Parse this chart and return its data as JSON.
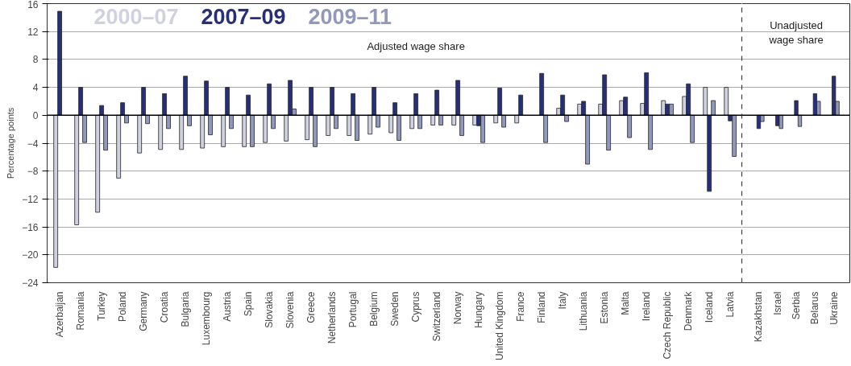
{
  "chart_data": [
    {
      "type": "bar",
      "ylabel": "Percentage points",
      "categories": [
        "Azerbaijan",
        "Romania",
        "Turkey",
        "Poland",
        "Germany",
        "Croatia",
        "Bulgaria",
        "Luxembourg",
        "Austria",
        "Spain",
        "Slovakia",
        "Slovenia",
        "Greece",
        "Netherlands",
        "Portugal",
        "Belgium",
        "Sweden",
        "Cyprus",
        "Switzerland",
        "Norway",
        "Hungary",
        "United Kingdom",
        "France",
        "Finland",
        "Italy",
        "Lithuania",
        "Estonia",
        "Malta",
        "Ireland",
        "Czech Republic",
        "Denmark",
        "Iceland",
        "Latvia"
      ],
      "series": [
        {
          "name": "2000–07",
          "color": "#cfd1e0",
          "values": [
            -21.8,
            -15.7,
            -13.9,
            -9.0,
            -5.4,
            -4.9,
            -4.9,
            -4.7,
            -4.5,
            -4.5,
            -3.9,
            -3.7,
            -3.5,
            -2.9,
            -2.9,
            -2.7,
            -2.5,
            -1.9,
            -1.4,
            -1.4,
            -1.4,
            -1.1,
            -1.1,
            null,
            1.0,
            1.6,
            1.6,
            2.1,
            1.7,
            2.1,
            2.7,
            4.0,
            4.0
          ]
        },
        {
          "name": "2007–09",
          "color": "#262f78",
          "values": [
            14.9,
            4.0,
            1.4,
            1.8,
            4.0,
            3.1,
            5.6,
            4.9,
            4.0,
            2.9,
            4.5,
            5.0,
            4.0,
            4.0,
            3.1,
            4.0,
            1.8,
            3.1,
            3.6,
            5.0,
            -1.5,
            3.9,
            2.9,
            6.0,
            2.9,
            2.0,
            5.8,
            2.6,
            6.1,
            1.6,
            4.5,
            -10.9,
            -0.8
          ]
        },
        {
          "name": "2009–11",
          "color": "#9298bb",
          "values": [
            null,
            -3.9,
            -5.0,
            -1.1,
            -1.2,
            -1.9,
            -1.5,
            -2.8,
            -1.9,
            -4.5,
            -1.9,
            0.9,
            -4.5,
            -1.9,
            -3.6,
            -1.7,
            -3.6,
            -1.9,
            -1.4,
            -2.9,
            -3.9,
            -1.7,
            null,
            -3.9,
            -0.9,
            -7.0,
            -5.0,
            -3.2,
            -4.9,
            1.6,
            -3.9,
            2.1,
            -5.9
          ]
        }
      ],
      "ylim": [
        -24,
        16
      ],
      "yticks": [
        {
          "value": -24,
          "label": "−24"
        },
        {
          "value": -20,
          "label": "−20"
        },
        {
          "value": -16,
          "label": "−16"
        },
        {
          "value": -12,
          "label": "−12"
        },
        {
          "value": -8,
          "label": "−8"
        },
        {
          "value": -4,
          "label": "−4"
        },
        0,
        4,
        8,
        12,
        16
      ],
      "annotations": [
        "Adjusted wage share"
      ],
      "grid": "y",
      "legend": "top left"
    },
    {
      "type": "bar",
      "categories": [
        "Kazakhstan",
        "Israel",
        "Serbia",
        "Belarus",
        "Ukraine"
      ],
      "series": [
        {
          "color": "#262f78",
          "values": [
            -1.9,
            -1.5,
            2.1,
            3.1,
            5.6
          ]
        },
        {
          "color": "#9298bb",
          "values": [
            -0.9,
            -1.9,
            -1.6,
            2.0,
            2.0
          ]
        }
      ],
      "ylim": [
        -24,
        16
      ],
      "yticks": [
        -24,
        -20,
        -16,
        -12,
        -8,
        -4,
        0,
        4,
        8,
        12,
        16
      ],
      "annotations": [
        "Unadjusted\nwage share"
      ],
      "grid": "y",
      "tick_labels": "x"
    }
  ]
}
